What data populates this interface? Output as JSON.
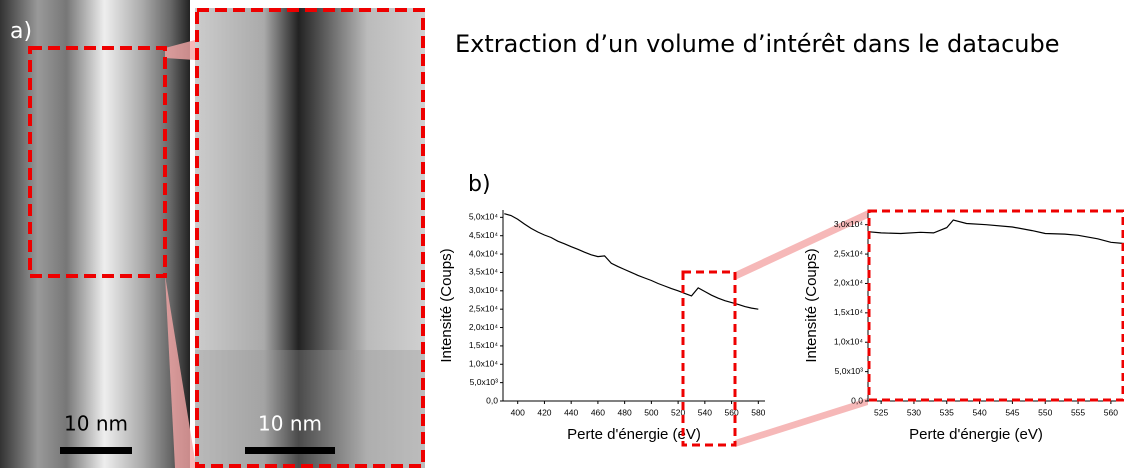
{
  "page": {
    "title": "Extraction d’un volume d’intérêt dans le datacube",
    "panel_a": "a)",
    "panel_b": "b)",
    "scale_bar_1": "10 nm",
    "scale_bar_2": "10 nm"
  },
  "chart_data": [
    {
      "type": "line",
      "xlabel": "Perte d'énergie (eV)",
      "ylabel": "Intensité (Coups)",
      "color": "#000000",
      "x": [
        390,
        395,
        400,
        405,
        410,
        415,
        420,
        425,
        430,
        435,
        440,
        445,
        450,
        455,
        460,
        465,
        470,
        475,
        480,
        485,
        490,
        495,
        500,
        505,
        510,
        515,
        520,
        525,
        530,
        535,
        540,
        545,
        550,
        555,
        560,
        565,
        570,
        575,
        580
      ],
      "values": [
        51000,
        50500,
        49500,
        48200,
        47000,
        46000,
        45200,
        44500,
        43500,
        42800,
        42000,
        41300,
        40500,
        39800,
        39300,
        39500,
        37500,
        36600,
        35800,
        35000,
        34200,
        33500,
        32800,
        32000,
        31300,
        30600,
        30000,
        29300,
        28600,
        30800,
        29800,
        28800,
        28000,
        27300,
        26800,
        26300,
        25700,
        25300,
        25000
      ],
      "xlim": [
        389,
        585
      ],
      "ylim": [
        0,
        52000
      ],
      "xticks": [
        400,
        420,
        440,
        460,
        480,
        500,
        520,
        540,
        560,
        580
      ],
      "yticks": [
        {
          "value": 0,
          "label": "0,0"
        },
        {
          "value": 5000,
          "label": "5,0x10³"
        },
        {
          "value": 10000,
          "label": "1,0x10⁴"
        },
        {
          "value": 15000,
          "label": "1,5x10⁴"
        },
        {
          "value": 20000,
          "label": "2,0x10⁴"
        },
        {
          "value": 25000,
          "label": "2,5x10⁴"
        },
        {
          "value": 30000,
          "label": "3,0x10⁴"
        },
        {
          "value": 35000,
          "label": "3,5x10⁴"
        },
        {
          "value": 40000,
          "label": "4,0x10⁴"
        },
        {
          "value": 45000,
          "label": "4,5x10⁴"
        },
        {
          "value": 50000,
          "label": "5,0x10⁴"
        }
      ]
    },
    {
      "type": "line",
      "xlabel": "Perte d'énergie (eV)",
      "ylabel": "Intensité (Coups)",
      "color": "#000000",
      "x": [
        523,
        525,
        528,
        531,
        533,
        535,
        536,
        538,
        541,
        545,
        548,
        550,
        553,
        555,
        558,
        560,
        562
      ],
      "values": [
        28800,
        28600,
        28500,
        28700,
        28600,
        29500,
        30800,
        30200,
        30000,
        29600,
        29000,
        28500,
        28400,
        28200,
        27600,
        27000,
        26800
      ],
      "xlim": [
        523,
        562
      ],
      "ylim": [
        0,
        32500
      ],
      "xticks": [
        525,
        530,
        535,
        540,
        545,
        550,
        555,
        560
      ],
      "yticks": [
        {
          "value": 0,
          "label": "0,0"
        },
        {
          "value": 5000,
          "label": "5,0x10³"
        },
        {
          "value": 10000,
          "label": "1,0x10⁴"
        },
        {
          "value": 15000,
          "label": "1,5x10⁴"
        },
        {
          "value": 20000,
          "label": "2,0x10⁴"
        },
        {
          "value": 25000,
          "label": "2,5x10⁴"
        },
        {
          "value": 30000,
          "label": "3,0x10⁴"
        }
      ]
    }
  ]
}
